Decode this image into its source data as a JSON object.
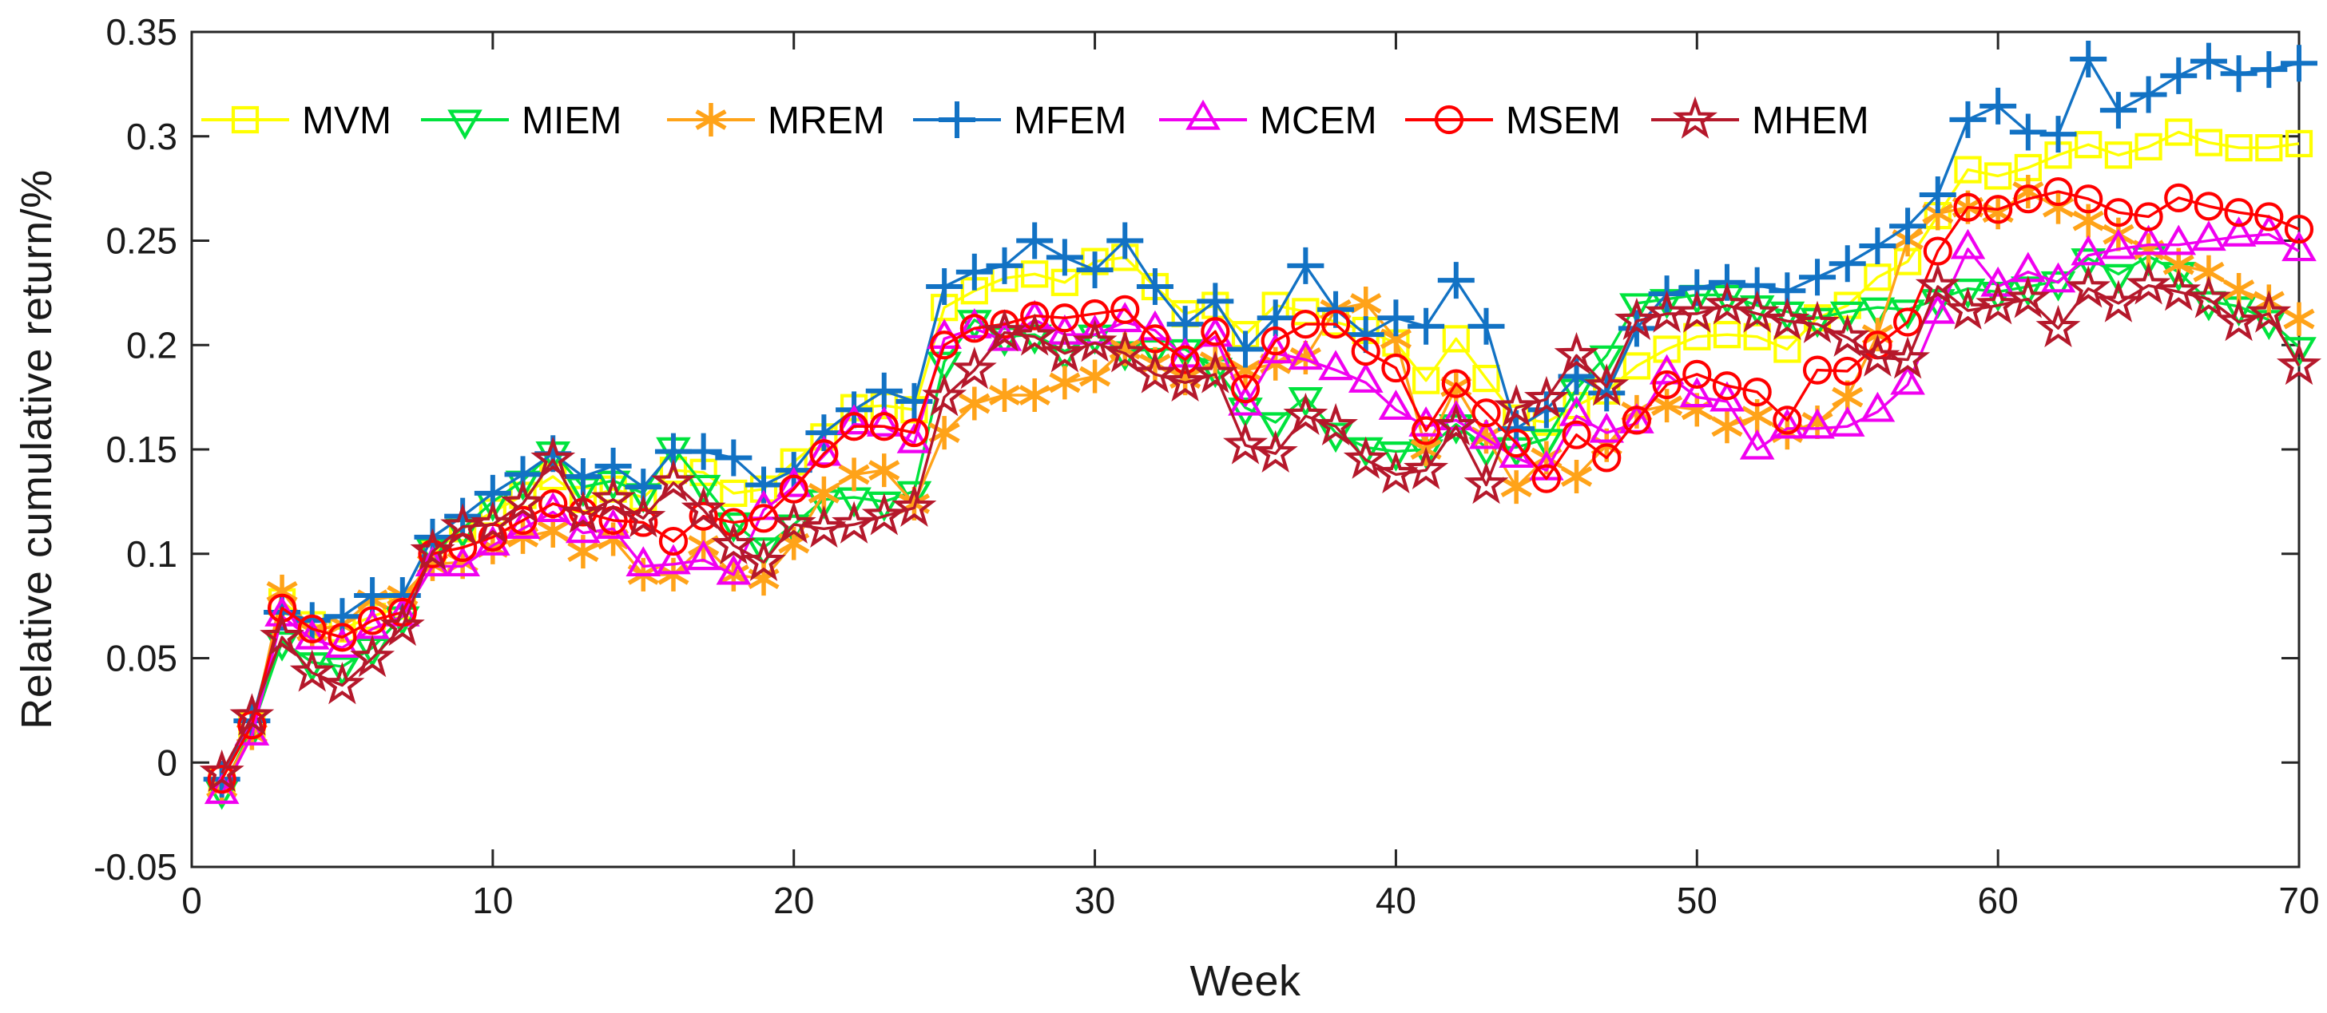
{
  "figure": {
    "background": "#ffffff",
    "axis_color": "#262626"
  },
  "chart_data": {
    "type": "line",
    "title": "",
    "xlabel": "Week",
    "ylabel": "Relative cumulative return/%",
    "xlim": [
      0,
      70
    ],
    "ylim": [
      -0.05,
      0.35
    ],
    "xticks": [
      0,
      10,
      20,
      30,
      40,
      50,
      60,
      70
    ],
    "xtick_labels": [
      "0",
      "10",
      "20",
      "30",
      "40",
      "50",
      "60",
      "70"
    ],
    "yticks": [
      -0.05,
      0,
      0.05,
      0.1,
      0.15,
      0.2,
      0.25,
      0.3,
      0.35
    ],
    "ytick_labels": [
      "-0.05",
      "0",
      "0.05",
      "0.1",
      "0.15",
      "0.2",
      "0.25",
      "0.3",
      "0.35"
    ],
    "grid": false,
    "legend_position": "top-left-inside-horizontal",
    "x": [
      1,
      2,
      3,
      4,
      5,
      6,
      7,
      8,
      9,
      10,
      11,
      12,
      13,
      14,
      15,
      16,
      17,
      18,
      19,
      20,
      21,
      22,
      23,
      24,
      25,
      26,
      27,
      28,
      29,
      30,
      31,
      32,
      33,
      34,
      35,
      36,
      37,
      38,
      39,
      40,
      41,
      42,
      43,
      44,
      45,
      46,
      47,
      48,
      49,
      50,
      51,
      52,
      53,
      54,
      55,
      56,
      57,
      58,
      59,
      60,
      61,
      62,
      63,
      64,
      65,
      66,
      67,
      68,
      69,
      70
    ],
    "series": [
      {
        "name": "MVM",
        "color": "#FFFF00",
        "marker": "square",
        "values": [
          -0.008,
          0.018,
          0.077,
          0.066,
          0.064,
          0.07,
          0.075,
          0.1,
          0.112,
          0.12,
          0.128,
          0.137,
          0.126,
          0.131,
          0.127,
          0.14,
          0.139,
          0.129,
          0.131,
          0.144,
          0.156,
          0.17,
          0.171,
          0.169,
          0.218,
          0.226,
          0.232,
          0.234,
          0.23,
          0.24,
          0.242,
          0.228,
          0.215,
          0.219,
          0.205,
          0.219,
          0.216,
          0.211,
          0.207,
          0.201,
          0.183,
          0.203,
          0.184,
          0.165,
          0.163,
          0.171,
          0.178,
          0.19,
          0.198,
          0.204,
          0.205,
          0.204,
          0.198,
          0.213,
          0.219,
          0.2325,
          0.24,
          0.262,
          0.284,
          0.281,
          0.285,
          0.291,
          0.296,
          0.291,
          0.295,
          0.302,
          0.297,
          0.2945,
          0.2945,
          0.2965
        ]
      },
      {
        "name": "MIEM",
        "color": "#00E33D",
        "marker": "triangle-down",
        "values": [
          -0.013,
          0.016,
          0.058,
          0.048,
          0.046,
          0.055,
          0.07,
          0.103,
          0.112,
          0.125,
          0.135,
          0.149,
          0.132,
          0.135,
          0.129,
          0.151,
          0.133,
          0.115,
          0.103,
          0.114,
          0.126,
          0.127,
          0.125,
          0.13,
          0.192,
          0.212,
          0.204,
          0.205,
          0.197,
          0.205,
          0.197,
          0.198,
          0.198,
          0.189,
          0.17,
          0.163,
          0.175,
          0.158,
          0.151,
          0.149,
          0.15,
          0.162,
          0.151,
          0.151,
          0.155,
          0.179,
          0.195,
          0.22,
          0.222,
          0.224,
          0.224,
          0.219,
          0.216,
          0.213,
          0.216,
          0.218,
          0.217,
          0.222,
          0.227,
          0.2255,
          0.228,
          0.2305,
          0.2415,
          0.234,
          0.2425,
          0.235,
          0.221,
          0.2185,
          0.212,
          0.199
        ]
      },
      {
        "name": "MREM",
        "color": "#FFA319",
        "marker": "asterisk",
        "values": [
          -0.012,
          0.014,
          0.082,
          0.063,
          0.066,
          0.078,
          0.08,
          0.095,
          0.096,
          0.103,
          0.108,
          0.111,
          0.101,
          0.107,
          0.09,
          0.09,
          0.104,
          0.09,
          0.088,
          0.105,
          0.129,
          0.138,
          0.14,
          0.124,
          0.158,
          0.172,
          0.176,
          0.176,
          0.182,
          0.185,
          0.198,
          0.191,
          0.184,
          0.192,
          0.188,
          0.191,
          0.194,
          0.217,
          0.22,
          0.203,
          0.15,
          0.18,
          0.156,
          0.132,
          0.146,
          0.137,
          0.152,
          0.168,
          0.171,
          0.169,
          0.161,
          0.166,
          0.158,
          0.163,
          0.175,
          0.205,
          0.2505,
          0.263,
          0.266,
          0.2635,
          0.2735,
          0.266,
          0.2595,
          0.253,
          0.2455,
          0.2385,
          0.235,
          0.2265,
          0.221,
          0.2125
        ]
      },
      {
        "name": "MFEM",
        "color": "#1272C4",
        "marker": "plus",
        "values": [
          -0.008,
          0.02,
          0.072,
          0.068,
          0.07,
          0.08,
          0.08,
          0.108,
          0.118,
          0.129,
          0.138,
          0.148,
          0.137,
          0.142,
          0.132,
          0.149,
          0.149,
          0.146,
          0.133,
          0.14,
          0.158,
          0.169,
          0.178,
          0.173,
          0.228,
          0.235,
          0.238,
          0.25,
          0.242,
          0.236,
          0.25,
          0.228,
          0.21,
          0.221,
          0.198,
          0.213,
          0.238,
          0.217,
          0.205,
          0.213,
          0.209,
          0.231,
          0.209,
          0.16,
          0.169,
          0.185,
          0.177,
          0.208,
          0.2245,
          0.2275,
          0.23,
          0.2285,
          0.226,
          0.2325,
          0.239,
          0.2475,
          0.257,
          0.272,
          0.308,
          0.3145,
          0.302,
          0.301,
          0.337,
          0.3125,
          0.32,
          0.329,
          0.336,
          0.33,
          0.332,
          0.335
        ]
      },
      {
        "name": "MCEM",
        "color": "#F000F0",
        "marker": "triangle-up",
        "values": [
          -0.015,
          0.013,
          0.07,
          0.059,
          0.055,
          0.064,
          0.07,
          0.094,
          0.094,
          0.104,
          0.112,
          0.12,
          0.11,
          0.112,
          0.094,
          0.095,
          0.097,
          0.09,
          0.121,
          0.132,
          0.147,
          0.162,
          0.161,
          0.153,
          0.203,
          0.208,
          0.202,
          0.212,
          0.205,
          0.205,
          0.211,
          0.207,
          0.194,
          0.204,
          0.171,
          0.196,
          0.193,
          0.188,
          0.182,
          0.169,
          0.161,
          0.164,
          0.155,
          0.146,
          0.14,
          0.166,
          0.158,
          0.1625,
          0.186,
          0.175,
          0.173,
          0.15,
          0.16,
          0.16,
          0.161,
          0.168,
          0.181,
          0.215,
          0.246,
          0.228,
          0.235,
          0.23,
          0.243,
          0.246,
          0.248,
          0.248,
          0.25,
          0.252,
          0.253,
          0.245
        ]
      },
      {
        "name": "MSEM",
        "color": "#FF0000",
        "marker": "circle",
        "values": [
          -0.008,
          0.018,
          0.074,
          0.064,
          0.06,
          0.068,
          0.072,
          0.1,
          0.103,
          0.108,
          0.116,
          0.124,
          0.12,
          0.116,
          0.115,
          0.106,
          0.118,
          0.115,
          0.117,
          0.131,
          0.148,
          0.161,
          0.161,
          0.158,
          0.2,
          0.208,
          0.21,
          0.214,
          0.213,
          0.215,
          0.217,
          0.203,
          0.193,
          0.2065,
          0.179,
          0.202,
          0.21,
          0.21,
          0.197,
          0.189,
          0.159,
          0.1815,
          0.1675,
          0.153,
          0.136,
          0.157,
          0.146,
          0.164,
          0.181,
          0.186,
          0.1805,
          0.1775,
          0.164,
          0.188,
          0.1875,
          0.2,
          0.211,
          0.245,
          0.266,
          0.265,
          0.27,
          0.2735,
          0.27,
          0.2635,
          0.2615,
          0.2705,
          0.2665,
          0.2635,
          0.2615,
          0.2555
        ]
      },
      {
        "name": "MHEM",
        "color": "#B5182B",
        "marker": "star",
        "values": [
          -0.005,
          0.022,
          0.06,
          0.043,
          0.037,
          0.05,
          0.065,
          0.101,
          0.113,
          0.114,
          0.124,
          0.145,
          0.119,
          0.126,
          0.117,
          0.134,
          0.121,
          0.104,
          0.096,
          0.114,
          0.112,
          0.114,
          0.118,
          0.122,
          0.175,
          0.188,
          0.206,
          0.204,
          0.196,
          0.201,
          0.196,
          0.186,
          0.182,
          0.186,
          0.152,
          0.148,
          0.166,
          0.161,
          0.145,
          0.138,
          0.14,
          0.161,
          0.133,
          0.17,
          0.174,
          0.195,
          0.18,
          0.2115,
          0.215,
          0.215,
          0.219,
          0.215,
          0.2115,
          0.21,
          0.2035,
          0.194,
          0.193,
          0.228,
          0.2165,
          0.219,
          0.222,
          0.208,
          0.227,
          0.22,
          0.2285,
          0.2255,
          0.222,
          0.211,
          0.215,
          0.19
        ]
      }
    ]
  }
}
